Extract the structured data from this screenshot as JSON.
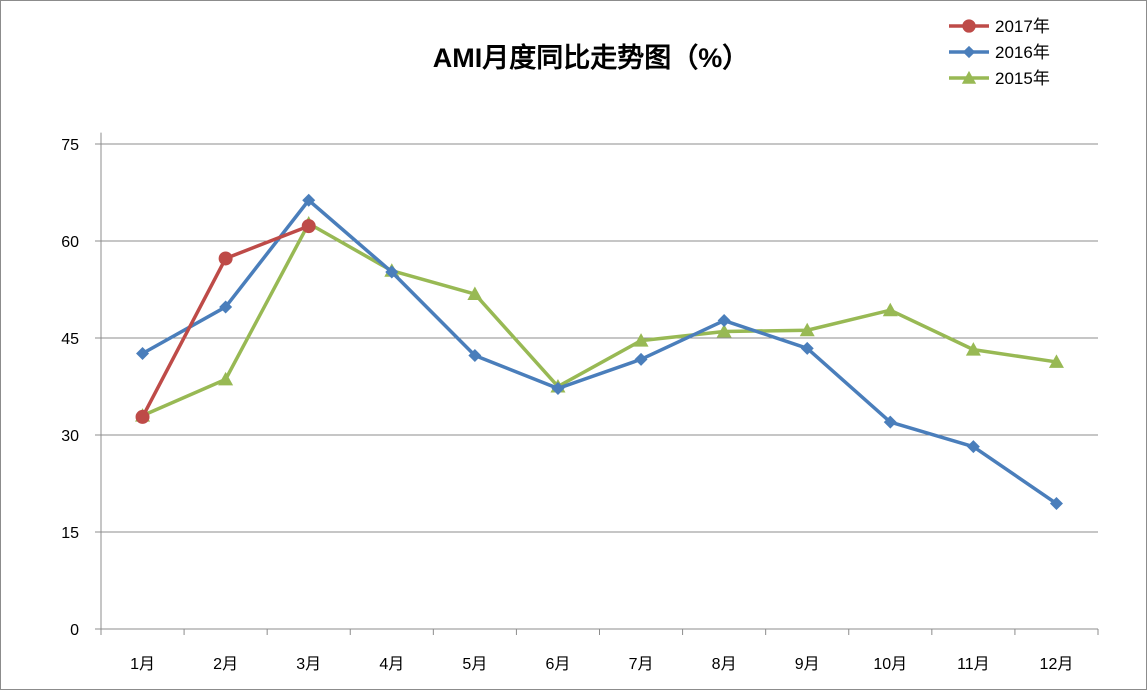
{
  "chart_data": {
    "type": "line",
    "title": "AMI月度同比走势图（%）",
    "xlabel": "",
    "ylabel": "",
    "categories": [
      "1月",
      "2月",
      "3月",
      "4月",
      "5月",
      "6月",
      "7月",
      "8月",
      "9月",
      "10月",
      "11月",
      "12月"
    ],
    "ylim": [
      0,
      80
    ],
    "yticks": [
      0,
      15,
      30,
      45,
      60,
      75
    ],
    "grid": true,
    "legend_position": "top-right",
    "series": [
      {
        "name": "2017年",
        "color": "#be4b48",
        "marker": "circle",
        "values": [
          32.8,
          57.3,
          62.3,
          null,
          null,
          null,
          null,
          null,
          null,
          null,
          null,
          null
        ]
      },
      {
        "name": "2016年",
        "color": "#4a7ebb",
        "marker": "diamond",
        "values": [
          42.6,
          49.8,
          66.3,
          55.2,
          42.3,
          37.2,
          41.7,
          47.7,
          43.4,
          32.0,
          28.2,
          19.4
        ]
      },
      {
        "name": "2015年",
        "color": "#98b954",
        "marker": "triangle",
        "values": [
          33.0,
          38.6,
          62.7,
          55.4,
          51.8,
          37.5,
          44.6,
          46.0,
          46.2,
          49.3,
          43.2,
          41.3
        ]
      }
    ]
  }
}
